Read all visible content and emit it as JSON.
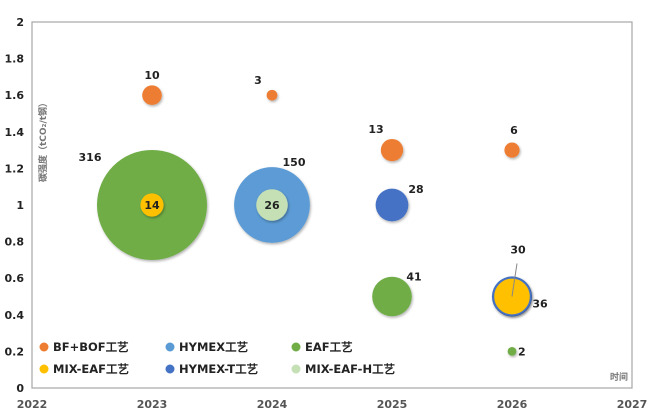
{
  "chart_data": {
    "type": "bubble",
    "title": "",
    "xlabel": "时间",
    "ylabel": "碳强度（tCO₂/t钢）",
    "xlim": [
      2022,
      2027
    ],
    "ylim": [
      0,
      2
    ],
    "xticks": [
      "2022",
      "2023",
      "2024",
      "2025",
      "2026",
      "2027"
    ],
    "yticks": [
      "0",
      "0.2",
      "0.4",
      "0.6",
      "0.8",
      "1",
      "1.2",
      "1.4",
      "1.6",
      "1.8",
      "2"
    ],
    "grid": false,
    "legend_position": "bottom-left",
    "series": [
      {
        "name": "EAF工艺",
        "color": "#70ad47",
        "points": [
          {
            "x": 2023,
            "y": 1.0,
            "size": 316
          },
          {
            "x": 2025,
            "y": 0.5,
            "size": 41
          },
          {
            "x": 2026,
            "y": 0.2,
            "size": 2
          }
        ]
      },
      {
        "name": "HYMEX工艺",
        "color": "#5b9bd5",
        "points": [
          {
            "x": 2024,
            "y": 1.0,
            "size": 150
          }
        ]
      },
      {
        "name": "BF+BOF工艺",
        "color": "#ed7d31",
        "points": [
          {
            "x": 2023,
            "y": 1.6,
            "size": 10
          },
          {
            "x": 2024,
            "y": 1.6,
            "size": 3
          },
          {
            "x": 2025,
            "y": 1.3,
            "size": 13
          },
          {
            "x": 2026,
            "y": 1.3,
            "size": 6
          }
        ]
      },
      {
        "name": "HYMEX-T工艺",
        "color": "#4472c4",
        "points": [
          {
            "x": 2025,
            "y": 1.0,
            "size": 28
          },
          {
            "x": 2026,
            "y": 0.5,
            "size": 30
          }
        ]
      },
      {
        "name": "MIX-EAF工艺",
        "color": "#ffc000",
        "points": [
          {
            "x": 2023,
            "y": 1.0,
            "size": 14
          },
          {
            "x": 2026,
            "y": 0.5,
            "size": 36
          }
        ]
      },
      {
        "name": "MIX-EAF-H工艺",
        "color": "#c5e0b4",
        "points": [
          {
            "x": 2024,
            "y": 1.0,
            "size": 26
          }
        ]
      }
    ],
    "legend_order": [
      "BF+BOF工艺",
      "HYMEX工艺",
      "EAF工艺",
      "MIX-EAF工艺",
      "HYMEX-T工艺",
      "MIX-EAF-H工艺"
    ]
  }
}
